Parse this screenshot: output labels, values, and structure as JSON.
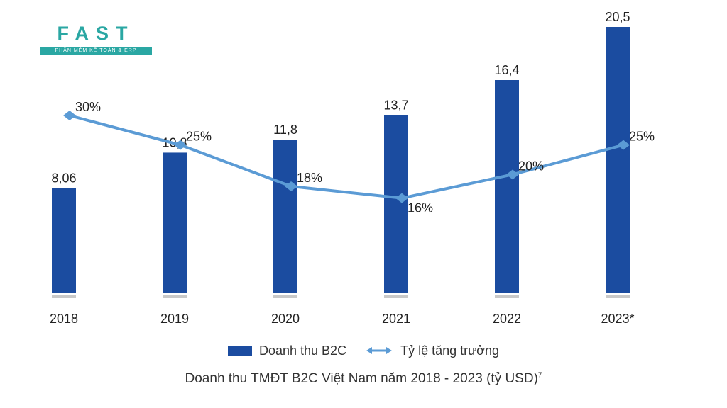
{
  "logo": {
    "text": "FAST",
    "tagline": "PHẦN MỀM KẾ TOÁN & ERP"
  },
  "chart_data": {
    "type": "bar",
    "title": "Doanh thu TMĐT B2C Việt Nam năm 2018 - 2023 (tỷ USD)",
    "title_note": "7",
    "categories": [
      "2018",
      "2019",
      "2020",
      "2021",
      "2022",
      "2023*"
    ],
    "series": [
      {
        "name": "Doanh thu B2C",
        "type": "bar",
        "values": [
          8.06,
          10.8,
          11.8,
          13.7,
          16.4,
          20.5
        ],
        "labels": [
          "8,06",
          "10,8",
          "11,8",
          "13,7",
          "16,4",
          "20,5"
        ],
        "color": "#1b4ca0"
      },
      {
        "name": "Tỷ lệ tăng trưởng",
        "type": "line",
        "values": [
          30,
          25,
          18,
          16,
          20,
          25
        ],
        "labels": [
          "30%",
          "25%",
          "18%",
          "16%",
          "20%",
          "25%"
        ],
        "color": "#5b9bd5"
      }
    ],
    "bar_ylim": [
      0,
      20.5
    ],
    "line_ylim": [
      0,
      45
    ],
    "legend_position": "bottom",
    "grid": false
  }
}
